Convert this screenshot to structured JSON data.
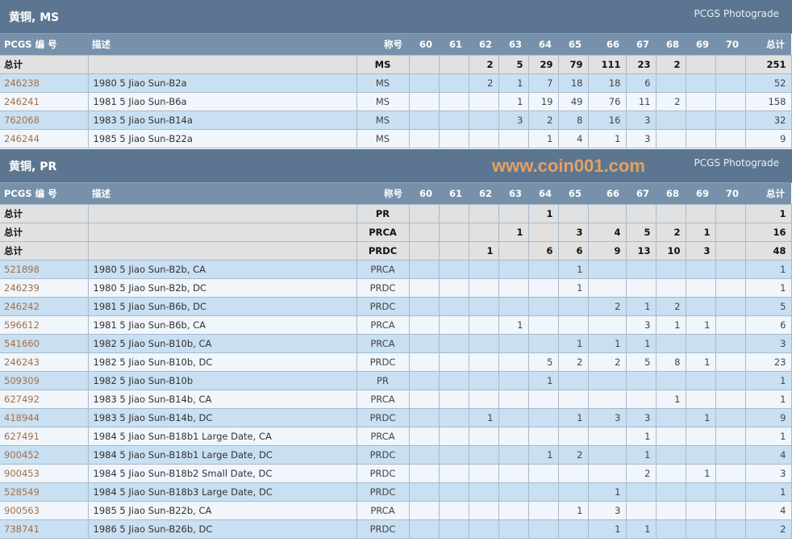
{
  "colors": {
    "section_header": "#5c7691",
    "column_header": "#7891aa",
    "total_row": "#e1e1e1",
    "row_odd": "#c9dff2",
    "row_even": "#f0f6fb",
    "link": "#a66f47",
    "watermark": "#f3a560"
  },
  "columns": {
    "id": "PCGS 编 号",
    "desc": "描述",
    "designation": "称号",
    "grades": [
      "60",
      "61",
      "62",
      "63",
      "64",
      "65",
      "66",
      "67",
      "68",
      "69",
      "70"
    ],
    "total": "总计"
  },
  "sections": [
    {
      "title": "黄铜, MS",
      "subtitle": "PCGS Photograde",
      "rows": [
        {
          "type": "total",
          "id": "总计",
          "desc": "",
          "designation": "MS",
          "grades": [
            "",
            "",
            "2",
            "5",
            "29",
            "79",
            "111",
            "23",
            "2",
            "",
            ""
          ],
          "total": "251"
        },
        {
          "type": "item",
          "id": "246238",
          "desc": "1980 5 Jiao Sun-B2a",
          "designation": "MS",
          "grades": [
            "",
            "",
            "2",
            "1",
            "7",
            "18",
            "18",
            "6",
            "",
            "",
            ""
          ],
          "total": "52"
        },
        {
          "type": "item",
          "id": "246241",
          "desc": "1981 5 Jiao Sun-B6a",
          "designation": "MS",
          "grades": [
            "",
            "",
            "",
            "1",
            "19",
            "49",
            "76",
            "11",
            "2",
            "",
            ""
          ],
          "total": "158"
        },
        {
          "type": "item",
          "id": "762068",
          "desc": "1983 5 Jiao Sun-B14a",
          "designation": "MS",
          "grades": [
            "",
            "",
            "",
            "3",
            "2",
            "8",
            "16",
            "3",
            "",
            "",
            ""
          ],
          "total": "32"
        },
        {
          "type": "item",
          "id": "246244",
          "desc": "1985 5 Jiao Sun-B22a",
          "designation": "MS",
          "grades": [
            "",
            "",
            "",
            "",
            "1",
            "4",
            "1",
            "3",
            "",
            "",
            ""
          ],
          "total": "9"
        }
      ]
    },
    {
      "title": "黄铜, PR",
      "subtitle": "PCGS Photograde",
      "rows": [
        {
          "type": "total",
          "id": "总计",
          "desc": "",
          "designation": "PR",
          "grades": [
            "",
            "",
            "",
            "",
            "1",
            "",
            "",
            "",
            "",
            "",
            ""
          ],
          "total": "1"
        },
        {
          "type": "total",
          "id": "总计",
          "desc": "",
          "designation": "PRCA",
          "grades": [
            "",
            "",
            "",
            "1",
            "",
            "3",
            "4",
            "5",
            "2",
            "1",
            ""
          ],
          "total": "16"
        },
        {
          "type": "total",
          "id": "总计",
          "desc": "",
          "designation": "PRDC",
          "grades": [
            "",
            "",
            "1",
            "",
            "6",
            "6",
            "9",
            "13",
            "10",
            "3",
            ""
          ],
          "total": "48"
        },
        {
          "type": "item",
          "id": "521898",
          "desc": "1980 5 Jiao Sun-B2b, CA",
          "designation": "PRCA",
          "grades": [
            "",
            "",
            "",
            "",
            "",
            "1",
            "",
            "",
            "",
            "",
            ""
          ],
          "total": "1"
        },
        {
          "type": "item",
          "id": "246239",
          "desc": "1980 5 Jiao Sun-B2b, DC",
          "designation": "PRDC",
          "grades": [
            "",
            "",
            "",
            "",
            "",
            "1",
            "",
            "",
            "",
            "",
            ""
          ],
          "total": "1"
        },
        {
          "type": "item",
          "id": "246242",
          "desc": "1981 5 Jiao Sun-B6b, DC",
          "designation": "PRDC",
          "grades": [
            "",
            "",
            "",
            "",
            "",
            "",
            "2",
            "1",
            "2",
            "",
            ""
          ],
          "total": "5"
        },
        {
          "type": "item",
          "id": "596612",
          "desc": "1981 5 Jiao Sun-B6b, CA",
          "designation": "PRCA",
          "grades": [
            "",
            "",
            "",
            "1",
            "",
            "",
            "",
            "3",
            "1",
            "1",
            ""
          ],
          "total": "6"
        },
        {
          "type": "item",
          "id": "541660",
          "desc": "1982 5 Jiao Sun-B10b, CA",
          "designation": "PRCA",
          "grades": [
            "",
            "",
            "",
            "",
            "",
            "1",
            "1",
            "1",
            "",
            "",
            ""
          ],
          "total": "3"
        },
        {
          "type": "item",
          "id": "246243",
          "desc": "1982 5 Jiao Sun-B10b, DC",
          "designation": "PRDC",
          "grades": [
            "",
            "",
            "",
            "",
            "5",
            "2",
            "2",
            "5",
            "8",
            "1",
            ""
          ],
          "total": "23"
        },
        {
          "type": "item",
          "id": "509309",
          "desc": "1982 5 Jiao Sun-B10b",
          "designation": "PR",
          "grades": [
            "",
            "",
            "",
            "",
            "1",
            "",
            "",
            "",
            "",
            "",
            ""
          ],
          "total": "1"
        },
        {
          "type": "item",
          "id": "627492",
          "desc": "1983 5 Jiao Sun-B14b, CA",
          "designation": "PRCA",
          "grades": [
            "",
            "",
            "",
            "",
            "",
            "",
            "",
            "",
            "1",
            "",
            ""
          ],
          "total": "1"
        },
        {
          "type": "item",
          "id": "418944",
          "desc": "1983 5 Jiao Sun-B14b, DC",
          "designation": "PRDC",
          "grades": [
            "",
            "",
            "1",
            "",
            "",
            "1",
            "3",
            "3",
            "",
            "1",
            ""
          ],
          "total": "9"
        },
        {
          "type": "item",
          "id": "627491",
          "desc": "1984 5 Jiao Sun-B18b1 Large Date, CA",
          "designation": "PRCA",
          "grades": [
            "",
            "",
            "",
            "",
            "",
            "",
            "",
            "1",
            "",
            "",
            ""
          ],
          "total": "1"
        },
        {
          "type": "item",
          "id": "900452",
          "desc": "1984 5 Jiao Sun-B18b1 Large Date, DC",
          "designation": "PRDC",
          "grades": [
            "",
            "",
            "",
            "",
            "1",
            "2",
            "",
            "1",
            "",
            "",
            ""
          ],
          "total": "4"
        },
        {
          "type": "item",
          "id": "900453",
          "desc": "1984 5 Jiao Sun-B18b2 Small Date, DC",
          "designation": "PRDC",
          "grades": [
            "",
            "",
            "",
            "",
            "",
            "",
            "",
            "2",
            "",
            "1",
            ""
          ],
          "total": "3"
        },
        {
          "type": "item",
          "id": "528549",
          "desc": "1984 5 Jiao Sun-B18b3 Large Date, DC",
          "designation": "PRDC",
          "grades": [
            "",
            "",
            "",
            "",
            "",
            "",
            "1",
            "",
            "",
            "",
            ""
          ],
          "total": "1"
        },
        {
          "type": "item",
          "id": "900563",
          "desc": "1985 5 Jiao Sun-B22b, CA",
          "designation": "PRCA",
          "grades": [
            "",
            "",
            "",
            "",
            "",
            "1",
            "3",
            "",
            "",
            "",
            ""
          ],
          "total": "4"
        },
        {
          "type": "item",
          "id": "738741",
          "desc": "1986 5 Jiao Sun-B26b, DC",
          "designation": "PRDC",
          "grades": [
            "",
            "",
            "",
            "",
            "",
            "",
            "1",
            "1",
            "",
            "",
            ""
          ],
          "total": "2"
        }
      ]
    }
  ],
  "watermark": "www.coin001.com"
}
